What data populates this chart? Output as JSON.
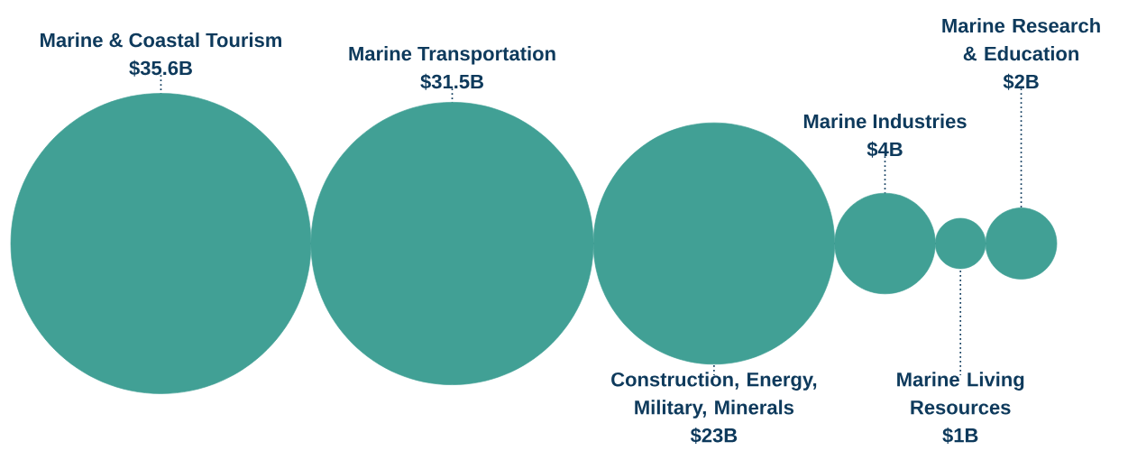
{
  "chart_data": {
    "type": "other",
    "categories": [
      "Marine & Coastal Tourism",
      "Marine Transportation",
      "Construction, Energy, Military, Minerals",
      "Marine Industries",
      "Marine Living Resources",
      "Marine Research & Education"
    ],
    "values": [
      35.6,
      31.5,
      23,
      4,
      1,
      2
    ],
    "value_labels": [
      "$35.6B",
      "$31.5B",
      "$23B",
      "$4B",
      "$1B",
      "$2B"
    ],
    "color": "#41a095"
  }
}
